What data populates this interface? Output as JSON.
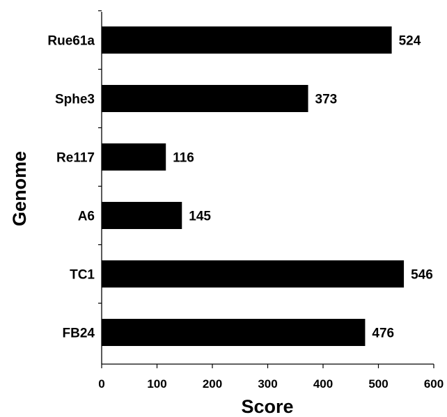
{
  "chart_data": {
    "type": "bar",
    "orientation": "horizontal",
    "title": "",
    "xlabel": "Score",
    "ylabel": "Genome",
    "categories": [
      "Rue61a",
      "Sphe3",
      "Re117",
      "A6",
      "TC1",
      "FB24"
    ],
    "values": [
      524,
      373,
      116,
      145,
      546,
      476
    ],
    "data_labels": [
      "524",
      "373",
      "116",
      "145",
      "546",
      "476"
    ],
    "xlim": [
      0,
      600
    ],
    "xticks": [
      0,
      100,
      200,
      300,
      400,
      500,
      600
    ],
    "grid": false,
    "legend": "none",
    "bar_color": "#000000"
  }
}
